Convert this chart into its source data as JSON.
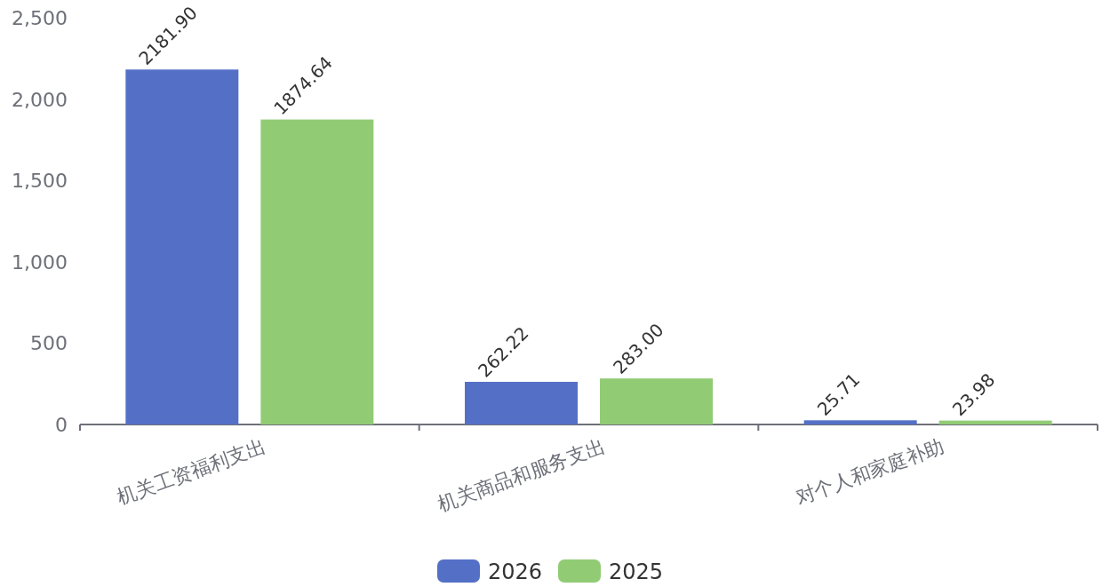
{
  "chart_data": {
    "type": "bar",
    "categories": [
      "机关工资福利支出",
      "机关商品和服务支出",
      "对个人和家庭补助"
    ],
    "series": [
      {
        "name": "2026",
        "color": "#5470c6",
        "values": [
          2181.9,
          262.22,
          25.71
        ],
        "value_labels": [
          "2181.90",
          "262.22",
          "25.71"
        ]
      },
      {
        "name": "2025",
        "color": "#91cc75",
        "values": [
          1874.64,
          283.0,
          23.98
        ],
        "value_labels": [
          "1874.64",
          "283.00",
          "23.98"
        ]
      }
    ],
    "ylim": [
      0,
      2500
    ],
    "yticks": [
      0,
      500,
      {
        "value": 1000,
        "label": "1,000"
      },
      {
        "value": 1500,
        "label": "1,500"
      },
      {
        "value": 2000,
        "label": "2,000"
      },
      {
        "value": 2500,
        "label": "2,500"
      }
    ],
    "legend": "bottom"
  }
}
